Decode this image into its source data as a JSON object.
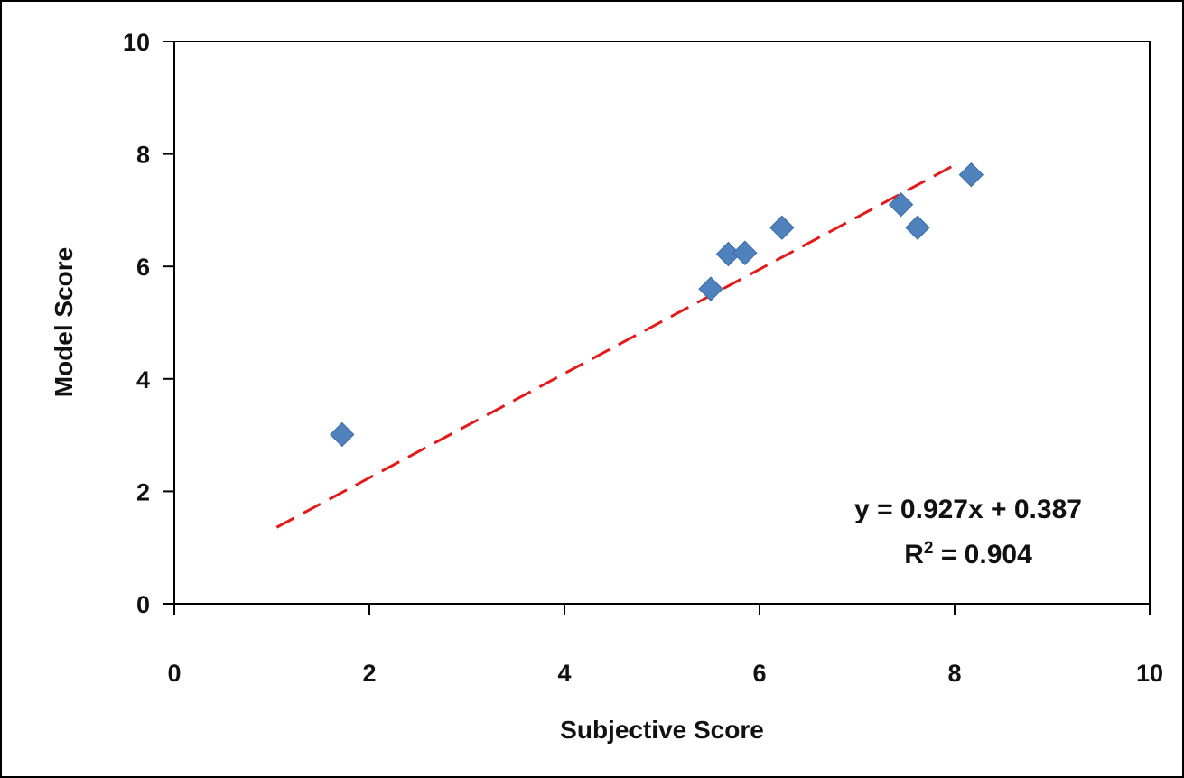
{
  "chart_data": {
    "type": "scatter",
    "xlabel": "Subjective Score",
    "ylabel": "Model Score",
    "xlim": [
      0,
      10
    ],
    "ylim": [
      0,
      10
    ],
    "x_ticks": [
      "0",
      "2",
      "4",
      "6",
      "8",
      "10"
    ],
    "y_ticks": [
      "0",
      "2",
      "4",
      "6",
      "8",
      "10"
    ],
    "grid": false,
    "legend": "none",
    "points": [
      {
        "x": 1.72,
        "y": 3.01
      },
      {
        "x": 5.5,
        "y": 5.6
      },
      {
        "x": 5.68,
        "y": 6.22
      },
      {
        "x": 5.85,
        "y": 6.24
      },
      {
        "x": 6.23,
        "y": 6.69
      },
      {
        "x": 7.45,
        "y": 7.1
      },
      {
        "x": 7.62,
        "y": 6.69
      },
      {
        "x": 8.17,
        "y": 7.63
      }
    ],
    "trendline": {
      "slope": 0.927,
      "intercept": 0.387,
      "x_range": [
        1.05,
        8.05
      ],
      "color": "#e41a1a",
      "style": "dashed"
    },
    "marker_color": "#4f81bd",
    "equation_text": "y = 0.927x  + 0.387",
    "r2_prefix": "R",
    "r2_sup": "2",
    "r2_suffix": " = 0.904"
  }
}
